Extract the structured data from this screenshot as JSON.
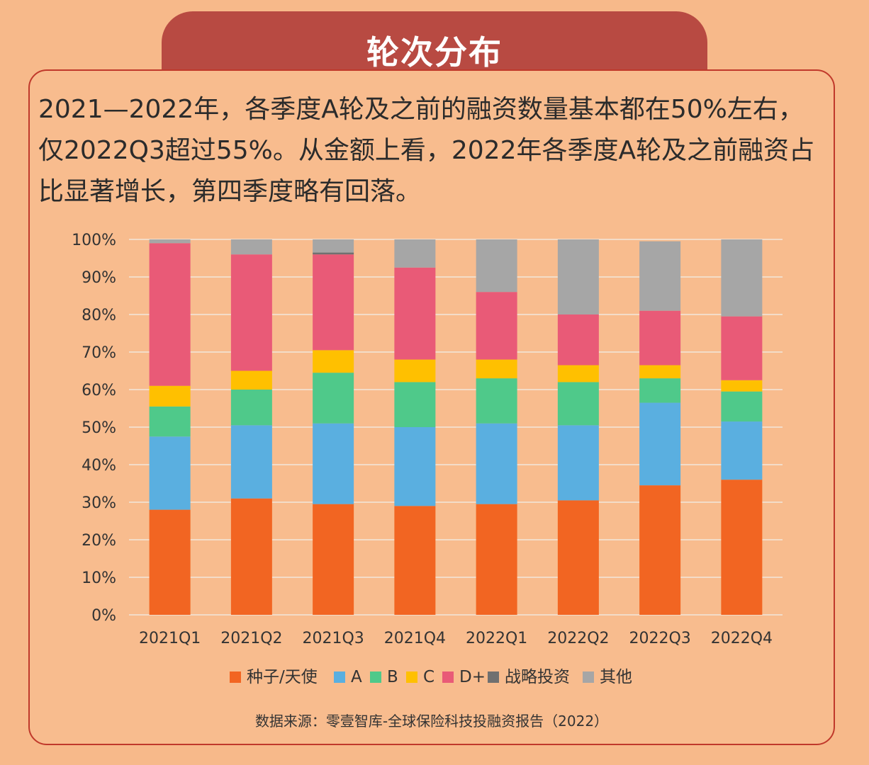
{
  "header": {
    "title": "轮次分布"
  },
  "description": "2021—2022年，各季度A轮及之前的融资数量基本都在50%左右，仅2022Q3超过55%。从金额上看，2022年各季度A轮及之前融资占比显著增长，第四季度略有回落。",
  "source": "数据来源：零壹智库-全球保险科技投融资报告（2022）",
  "chart_data": {
    "type": "bar",
    "stacked": true,
    "categories": [
      "2021Q1",
      "2021Q2",
      "2021Q3",
      "2021Q4",
      "2022Q1",
      "2022Q2",
      "2022Q3",
      "2022Q4"
    ],
    "y_ticks": [
      "0%",
      "10%",
      "20%",
      "30%",
      "40%",
      "50%",
      "60%",
      "70%",
      "80%",
      "90%",
      "100%"
    ],
    "ylim": [
      0,
      100
    ],
    "grid": true,
    "legend_position": "bottom",
    "series": [
      {
        "name": "种子/天使",
        "color": "#f26522",
        "values": [
          28,
          31,
          29.5,
          29,
          29.5,
          30.5,
          34.5,
          36
        ]
      },
      {
        "name": "A",
        "color": "#5aafe0",
        "values": [
          19.5,
          19.5,
          21.5,
          21,
          21.5,
          20,
          22,
          15.5
        ]
      },
      {
        "name": "B",
        "color": "#4fc98a",
        "values": [
          8,
          9.5,
          13.5,
          12,
          12,
          11.5,
          6.5,
          8
        ]
      },
      {
        "name": "C",
        "color": "#ffc000",
        "values": [
          5.5,
          5,
          6,
          6,
          5,
          4.5,
          3.5,
          3
        ]
      },
      {
        "name": "D+",
        "color": "#e95a77",
        "values": [
          38,
          31,
          25.5,
          24.5,
          18,
          13.5,
          14.5,
          17
        ]
      },
      {
        "name": "战略投资",
        "color": "#707070",
        "values": [
          0,
          0,
          0.5,
          0,
          0,
          0,
          0,
          0
        ]
      },
      {
        "name": "其他",
        "color": "#a6a6a6",
        "values": [
          1,
          4,
          3.5,
          7.5,
          14,
          20,
          18.5,
          20.5
        ]
      }
    ]
  }
}
